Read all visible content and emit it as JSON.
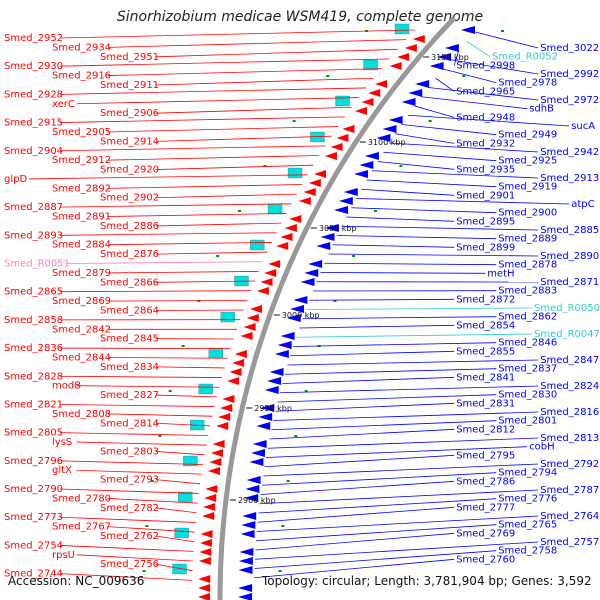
{
  "title": "Sinorhizobium medicae WSM419, complete genome",
  "footer": {
    "accession": "Accession: NC_009636",
    "topology": "Topology: circular; Length: 3,781,904 bp; Genes: 3,592"
  },
  "colors": {
    "forward": "#ff0000",
    "reverse": "#0000ff",
    "rna_forward": "#ff80c0",
    "rna_reverse": "#33cccc",
    "backbone": "#999999",
    "marker": "#009900"
  },
  "ticks": [
    "3150 kbp",
    "3100 kbp",
    "3050 kbp",
    "3000 kbp",
    "2950 kbp",
    "2900 kbp"
  ],
  "left_labels": [
    "Smed_2952",
    "Smed_2934",
    "Smed_2951",
    "Smed_2930",
    "Smed_2916",
    "Smed_2911",
    "Smed_2928",
    "xerC",
    "Smed_2906",
    "Smed_2915",
    "Smed_2905",
    "Smed_2914",
    "Smed_2904",
    "Smed_2912",
    "Smed_2920",
    "glpD",
    "Smed_2892",
    "Smed_2902",
    "Smed_2887",
    "Smed_2891",
    "Smed_2886",
    "Smed_2893",
    "Smed_2884",
    "Smed_2876",
    "Smed_R0051",
    "Smed_2879",
    "Smed_2866",
    "Smed_2865",
    "Smed_2869",
    "Smed_2864",
    "Smed_2858",
    "Smed_2842",
    "Smed_2845",
    "Smed_2836",
    "Smed_2844",
    "Smed_2834",
    "Smed_2828",
    "modB",
    "Smed_2827",
    "Smed_2821",
    "Smed_2808",
    "Smed_2814",
    "Smed_2805",
    "lysS",
    "Smed_2803",
    "Smed_2796",
    "gltX",
    "Smed_2793",
    "Smed_2790",
    "Smed_2780",
    "Smed_2782",
    "Smed_2773",
    "Smed_2767",
    "Smed_2762",
    "Smed_2754",
    "rpsU",
    "Smed_2756",
    "Smed_2744"
  ],
  "right_labels": [
    "Smed_3022",
    "Smed_R0052",
    "Smed_2998",
    "Smed_2992",
    "Smed_2978",
    "Smed_2965",
    "Smed_2972",
    "sdhB",
    "Smed_2948",
    "sucA",
    "Smed_2949",
    "Smed_2932",
    "Smed_2942",
    "Smed_2925",
    "Smed_2935",
    "Smed_2913",
    "Smed_2919",
    "Smed_2901",
    "atpC",
    "Smed_2900",
    "Smed_2895",
    "Smed_2885",
    "Smed_2889",
    "Smed_2899",
    "Smed_2890",
    "Smed_2878",
    "metH",
    "Smed_2871",
    "Smed_2883",
    "Smed_2872",
    "Smed_R0050",
    "Smed_2862",
    "Smed_2854",
    "Smed_R0047",
    "Smed_2846",
    "Smed_2855",
    "Smed_2847",
    "Smed_2837",
    "Smed_2841",
    "Smed_2824",
    "Smed_2830",
    "Smed_2831",
    "Smed_2816",
    "Smed_2801",
    "Smed_2812",
    "Smed_2813",
    "cobH",
    "Smed_2795",
    "Smed_2792",
    "Smed_2794",
    "Smed_2786",
    "Smed_2787",
    "Smed_2776",
    "Smed_2777",
    "Smed_2764",
    "Smed_2765",
    "Smed_2769",
    "Smed_2757",
    "Smed_2758",
    "Smed_2760"
  ]
}
